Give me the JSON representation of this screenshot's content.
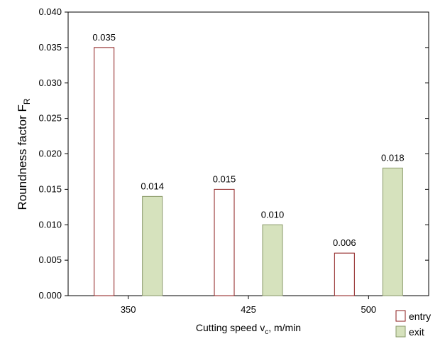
{
  "chart_data": {
    "type": "bar",
    "title": "",
    "xlabel": {
      "main": "Cutting speed v",
      "sub": "c",
      "rest": ", m/min"
    },
    "ylabel": {
      "main": "Roundness factor F",
      "sub": "R"
    },
    "categories": [
      "350",
      "425",
      "500"
    ],
    "series": [
      {
        "name": "entry",
        "values": [
          0.035,
          0.015,
          0.006
        ],
        "labels": [
          "0.035",
          "0.015",
          "0.006"
        ],
        "fill": "#ffffff",
        "stroke": "#8b1a1a"
      },
      {
        "name": "exit",
        "values": [
          0.014,
          0.01,
          0.018
        ],
        "labels": [
          "0.014",
          "0.010",
          "0.018"
        ],
        "fill": "#d6e2bd",
        "stroke": "#8a9a6a"
      }
    ],
    "ylim": [
      0,
      0.04
    ],
    "yticks": [
      "0.000",
      "0.005",
      "0.010",
      "0.015",
      "0.020",
      "0.025",
      "0.030",
      "0.035",
      "0.040"
    ],
    "grid": false,
    "legend": "bottom-right"
  }
}
